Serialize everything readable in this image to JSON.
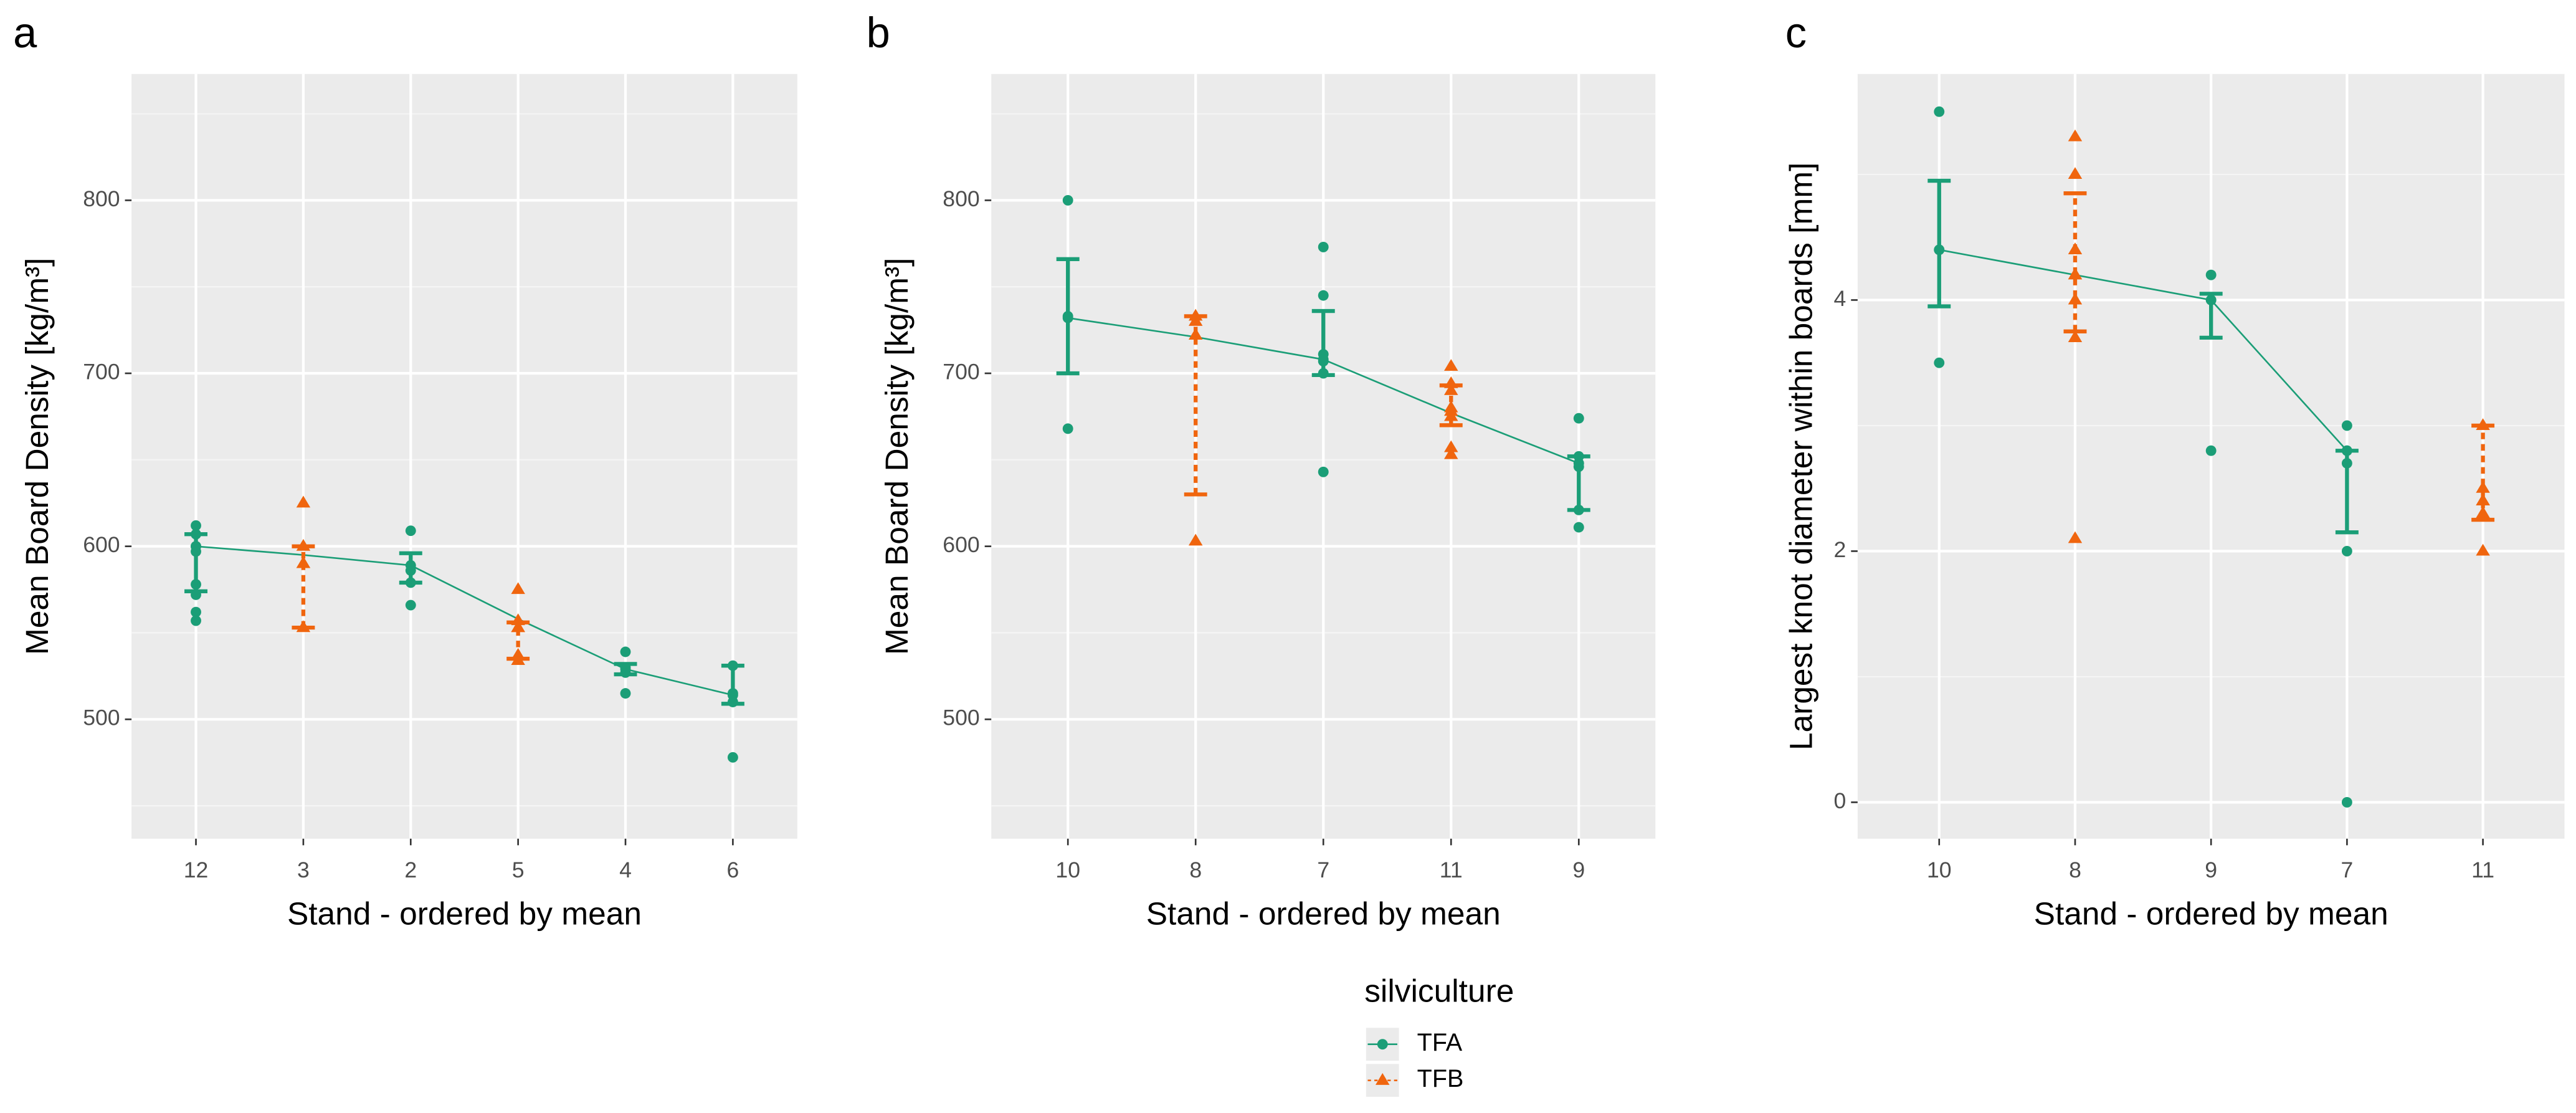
{
  "legend": {
    "title": "silviculture"
  },
  "chart_data": [
    {
      "type": "pointrange",
      "panel": "a",
      "categories": [
        "12",
        "3",
        "2",
        "5",
        "4",
        "6"
      ],
      "xlabel": "Stand - ordered by mean",
      "ylabel": "Mean Board Density [kg/m³]",
      "ylim": [
        431,
        873
      ],
      "yticks": [
        500,
        600,
        700,
        800
      ],
      "grid": true,
      "series": [
        {
          "name": "TFA",
          "color": "#1b9e77",
          "marker": "circle",
          "linestyle": "solid",
          "points": [
            [
              612,
              607,
              600,
              597,
              578,
              572,
              562,
              557
            ],
            null,
            [
              609,
              586,
              579,
              566
            ],
            null,
            [
              539,
              530,
              527,
              515
            ],
            [
              531,
              515,
              510,
              478
            ]
          ],
          "line": [
            600,
            595,
            589,
            558,
            529,
            514
          ],
          "lower": [
            574,
            null,
            579,
            null,
            526,
            509
          ],
          "upper": [
            607,
            null,
            596,
            null,
            532,
            531
          ]
        },
        {
          "name": "TFB",
          "color": "#f0650e",
          "marker": "triangle",
          "linestyle": "dotted",
          "points": [
            null,
            [
              625,
              600,
              590,
              553
            ],
            null,
            [
              575,
              557,
              553,
              537,
              534
            ],
            null,
            null
          ],
          "line": [
            null,
            590,
            null,
            553,
            null,
            null
          ],
          "lower": [
            null,
            553,
            null,
            535,
            null,
            null
          ],
          "upper": [
            null,
            600,
            null,
            556,
            null,
            null
          ]
        }
      ]
    },
    {
      "type": "pointrange",
      "panel": "b",
      "categories": [
        "10",
        "8",
        "7",
        "11",
        "9"
      ],
      "xlabel": "Stand - ordered by mean",
      "ylabel": "Mean Board Density [kg/m³]",
      "ylim": [
        431,
        873
      ],
      "yticks": [
        500,
        600,
        700,
        800
      ],
      "grid": true,
      "series": [
        {
          "name": "TFA",
          "color": "#1b9e77",
          "marker": "circle",
          "linestyle": "solid",
          "points": [
            [
              800,
              733,
              668
            ],
            null,
            [
              773,
              745,
              711,
              707,
              700,
              643
            ],
            null,
            [
              674,
              652,
              646,
              621,
              611
            ]
          ],
          "line": [
            732,
            721,
            708,
            677,
            648
          ],
          "lower": [
            700,
            null,
            699,
            null,
            621
          ],
          "upper": [
            766,
            null,
            736,
            null,
            652
          ]
        },
        {
          "name": "TFB",
          "color": "#f0650e",
          "marker": "triangle",
          "linestyle": "dotted",
          "points": [
            null,
            [
              733,
              730,
              603
            ],
            null,
            [
              704,
              694,
              690,
              680,
              675,
              657,
              653
            ],
            null
          ],
          "line": [
            null,
            722,
            null,
            678,
            null
          ],
          "lower": [
            null,
            630,
            null,
            670,
            null
          ],
          "upper": [
            null,
            733,
            null,
            693,
            null
          ]
        }
      ]
    },
    {
      "type": "pointrange",
      "panel": "c",
      "categories": [
        "10",
        "8",
        "9",
        "7",
        "11"
      ],
      "xlabel": "Stand - ordered by mean",
      "ylabel": "Largest knot diameter within boards  [mm]",
      "ylim": [
        -0.29,
        5.8
      ],
      "yticks": [
        0,
        2,
        4
      ],
      "grid": true,
      "series": [
        {
          "name": "TFA",
          "color": "#1b9e77",
          "marker": "circle",
          "linestyle": "solid",
          "points": [
            [
              5.5,
              4.4,
              3.5
            ],
            null,
            [
              4.2,
              4.0,
              2.8
            ],
            [
              3.0,
              2.8,
              2.7,
              2.0,
              0
            ],
            null
          ],
          "line": [
            4.4,
            4.2,
            4.0,
            2.8,
            null
          ],
          "lower": [
            3.95,
            null,
            3.7,
            2.15,
            null
          ],
          "upper": [
            4.95,
            null,
            4.05,
            2.8,
            null
          ]
        },
        {
          "name": "TFB",
          "color": "#f0650e",
          "marker": "triangle",
          "linestyle": "dotted",
          "points": [
            null,
            [
              5.3,
              5.0,
              4.4,
              4.2,
              4.0,
              3.7,
              2.1
            ],
            null,
            null,
            [
              3.0,
              2.5,
              2.4,
              2.3,
              2.0
            ]
          ],
          "line": [
            null,
            4.2,
            null,
            null,
            2.4
          ],
          "lower": [
            null,
            3.75,
            null,
            null,
            2.25
          ],
          "upper": [
            null,
            4.85,
            null,
            null,
            3.0
          ]
        }
      ]
    }
  ]
}
